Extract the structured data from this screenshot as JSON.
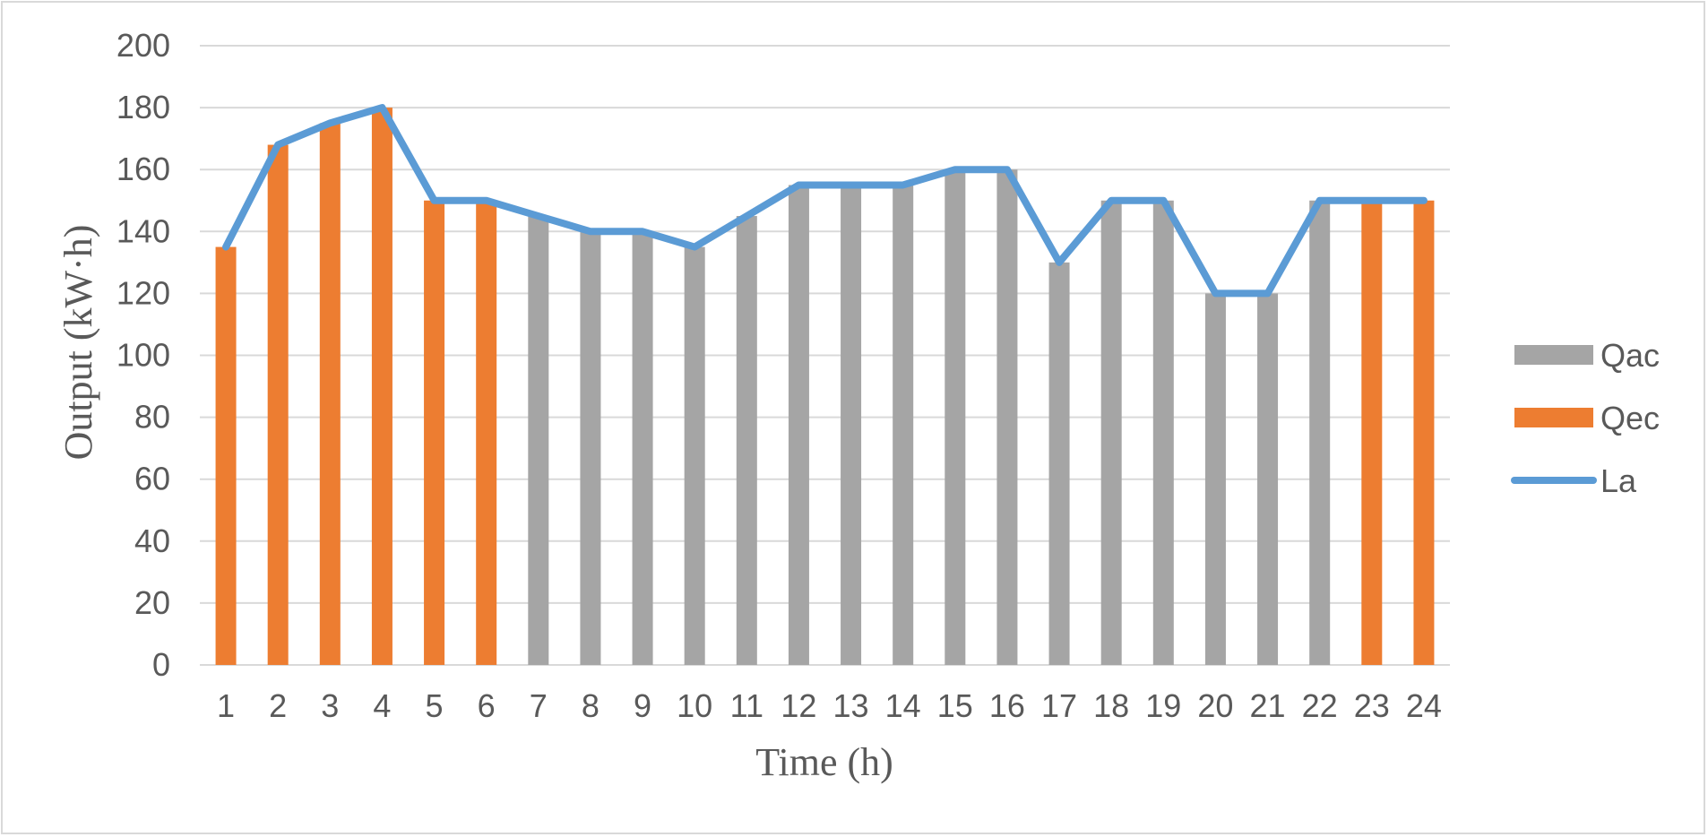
{
  "chart_data": {
    "type": "bar",
    "xlabel": "Time (h)",
    "ylabel": "Output (kW·h)",
    "ylim": [
      0,
      200
    ],
    "yticks": [
      0,
      20,
      40,
      60,
      80,
      100,
      120,
      140,
      160,
      180,
      200
    ],
    "categories": [
      "1",
      "2",
      "3",
      "4",
      "5",
      "6",
      "7",
      "8",
      "9",
      "10",
      "11",
      "12",
      "13",
      "14",
      "15",
      "16",
      "17",
      "18",
      "19",
      "20",
      "21",
      "22",
      "23",
      "24"
    ],
    "grid": true,
    "legend_position": "right",
    "series": [
      {
        "name": "Qac",
        "type": "bar",
        "color": "#a5a5a5",
        "values": [
          0,
          0,
          0,
          0,
          0,
          0,
          145,
          140,
          140,
          135,
          145,
          155,
          155,
          155,
          160,
          160,
          130,
          150,
          150,
          120,
          120,
          150,
          0,
          0
        ]
      },
      {
        "name": "Qec",
        "type": "bar",
        "color": "#ed7d31",
        "values": [
          135,
          168,
          175,
          180,
          150,
          150,
          0,
          0,
          0,
          0,
          0,
          0,
          0,
          0,
          0,
          0,
          0,
          0,
          0,
          0,
          0,
          0,
          150,
          150
        ]
      },
      {
        "name": "La",
        "type": "line",
        "color": "#5b9bd5",
        "values": [
          135,
          168,
          175,
          180,
          150,
          150,
          145,
          140,
          140,
          135,
          145,
          155,
          155,
          155,
          160,
          160,
          130,
          150,
          150,
          120,
          120,
          150,
          150,
          150
        ]
      }
    ]
  }
}
